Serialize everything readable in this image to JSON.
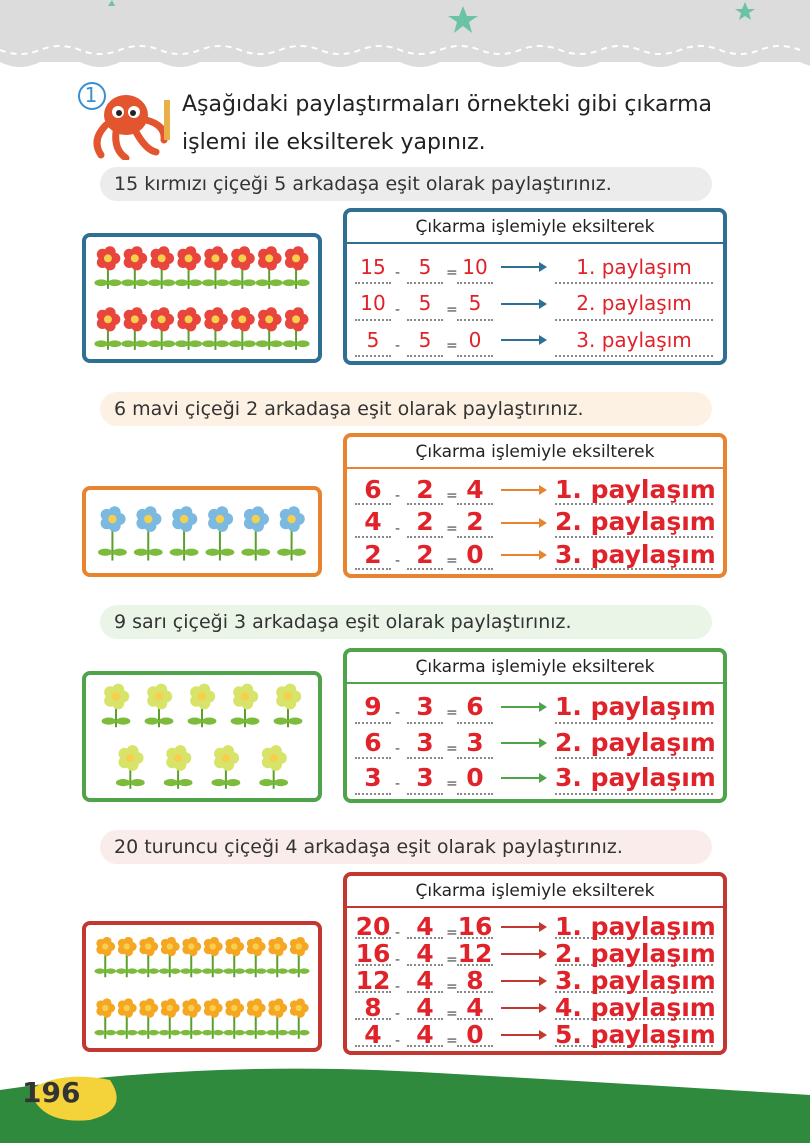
{
  "header": {
    "number": "1",
    "instruction": "Aşağıdaki paylaştırmaları örnekteki gibi çıkarma işlemi ile eksilterek yapınız."
  },
  "sections": [
    {
      "prompt": "15 kırmızı çiçeği 5 arkadaşa eşit olarak paylaştırınız.",
      "color": "#2f6f93",
      "table_title": "Çıkarma işlemiyle eksilterek",
      "rows": [
        {
          "a": 15,
          "minus": "-",
          "b": 5,
          "equals": "=",
          "result": 10,
          "share": "1. paylaşım"
        },
        {
          "a": 10,
          "minus": "-",
          "b": 5,
          "equals": "=",
          "result": 5,
          "share": "2. paylaşım"
        },
        {
          "a": 5,
          "minus": "-",
          "b": 5,
          "equals": "=",
          "result": 0,
          "share": "3. paylaşım"
        }
      ]
    },
    {
      "prompt": "6 mavi çiçeği 2 arkadaşa eşit olarak paylaştırınız.",
      "color": "#e8832f",
      "table_title": "Çıkarma işlemiyle eksilterek",
      "rows": [
        {
          "a": 6,
          "minus": "-",
          "b": 2,
          "equals": "=",
          "result": 4,
          "share": "1. paylaşım"
        },
        {
          "a": 4,
          "minus": "-",
          "b": 2,
          "equals": "=",
          "result": 2,
          "share": "2. paylaşım"
        },
        {
          "a": 2,
          "minus": "-",
          "b": 2,
          "equals": "=",
          "result": 0,
          "share": "3. paylaşım"
        }
      ]
    },
    {
      "prompt": "9 sarı çiçeği 3 arkadaşa eşit olarak paylaştırınız.",
      "color": "#4fa34b",
      "table_title": "Çıkarma işlemiyle eksilterek",
      "rows": [
        {
          "a": 9,
          "minus": "-",
          "b": 3,
          "equals": "=",
          "result": 6,
          "share": "1. paylaşım"
        },
        {
          "a": 6,
          "minus": "-",
          "b": 3,
          "equals": "=",
          "result": 3,
          "share": "2. paylaşım"
        },
        {
          "a": 3,
          "minus": "-",
          "b": 3,
          "equals": "=",
          "result": 0,
          "share": "3. paylaşım"
        }
      ]
    },
    {
      "prompt": "20 turuncu çiçeği 4 arkadaşa eşit olarak paylaştırınız.",
      "color": "#c2372f",
      "table_title": "Çıkarma işlemiyle eksilterek",
      "rows": [
        {
          "a": 20,
          "minus": "-",
          "b": 4,
          "equals": "=",
          "result": 16,
          "share": "1. paylaşım"
        },
        {
          "a": 16,
          "minus": "-",
          "b": 4,
          "equals": "=",
          "result": 12,
          "share": "2. paylaşım"
        },
        {
          "a": 12,
          "minus": "-",
          "b": 4,
          "equals": "=",
          "result": 8,
          "share": "3. paylaşım"
        },
        {
          "a": 8,
          "minus": "-",
          "b": 4,
          "equals": "=",
          "result": 4,
          "share": "4. paylaşım"
        },
        {
          "a": 4,
          "minus": "-",
          "b": 4,
          "equals": "=",
          "result": 0,
          "share": "5. paylaşım"
        }
      ]
    }
  ],
  "footer": {
    "page_number": "196"
  }
}
